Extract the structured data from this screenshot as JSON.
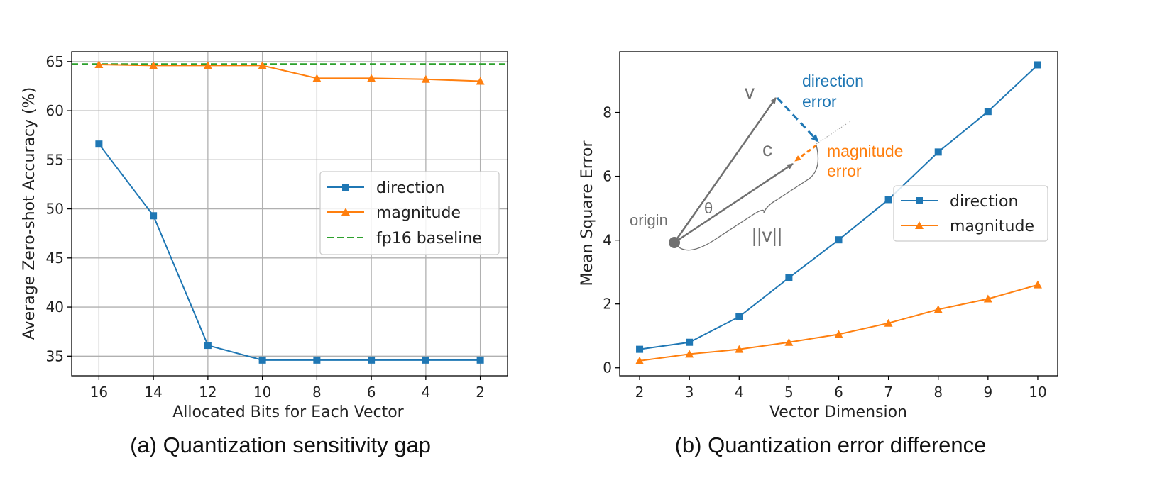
{
  "colors": {
    "direction": "#1f77b4",
    "magnitude": "#ff7f0e",
    "baseline": "#2ca02c",
    "grid": "#b0b0b0",
    "annotation_gray": "#707070"
  },
  "chart_data": [
    {
      "type": "line",
      "caption": "(a) Quantization sensitivity gap",
      "xlabel": "Allocated Bits for Each Vector",
      "ylabel": "Average Zero-shot Accuracy (%)",
      "x": [
        16,
        14,
        12,
        10,
        8,
        6,
        4,
        2
      ],
      "x_tick_labels": [
        "16",
        "14",
        "12",
        "10",
        "8",
        "6",
        "4",
        "2"
      ],
      "y_ticks": [
        35,
        40,
        45,
        50,
        55,
        60,
        65
      ],
      "y_tick_labels": [
        "35",
        "40",
        "45",
        "50",
        "55",
        "60",
        "65"
      ],
      "xlim": [
        17,
        1
      ],
      "ylim": [
        33.0,
        66.0
      ],
      "grid": true,
      "legend_position": "center-right",
      "series": [
        {
          "name": "direction",
          "marker": "square",
          "values": [
            56.6,
            49.3,
            36.1,
            34.6,
            34.6,
            34.6,
            34.6,
            34.6
          ]
        },
        {
          "name": "magnitude",
          "marker": "triangle",
          "values": [
            64.7,
            64.6,
            64.6,
            64.6,
            63.3,
            63.3,
            63.2,
            63.0
          ]
        }
      ],
      "baseline": {
        "name": "fp16 baseline",
        "value": 64.75,
        "style": "dashed"
      }
    },
    {
      "type": "line",
      "caption": "(b) Quantization error difference",
      "xlabel": "Vector Dimension",
      "ylabel": "Mean Square Error",
      "x": [
        2,
        3,
        4,
        5,
        6,
        7,
        8,
        9,
        10
      ],
      "x_tick_labels": [
        "2",
        "3",
        "4",
        "5",
        "6",
        "7",
        "8",
        "9",
        "10"
      ],
      "y_ticks": [
        0,
        2,
        4,
        6,
        8
      ],
      "y_tick_labels": [
        "0",
        "2",
        "4",
        "6",
        "8"
      ],
      "xlim": [
        1.6,
        10.4
      ],
      "ylim": [
        -0.25,
        9.9
      ],
      "grid": false,
      "legend_position": "right",
      "series": [
        {
          "name": "direction",
          "marker": "square",
          "values": [
            0.58,
            0.8,
            1.6,
            2.82,
            4.01,
            5.27,
            6.76,
            8.03,
            9.49
          ]
        },
        {
          "name": "magnitude",
          "marker": "triangle",
          "values": [
            0.22,
            0.43,
            0.58,
            0.8,
            1.05,
            1.4,
            1.83,
            2.16,
            2.6
          ]
        }
      ],
      "annotation": {
        "label_v": "v",
        "label_c": "c",
        "label_theta": "θ",
        "label_origin": "origin",
        "label_norm": "||v||",
        "label_direction_error": [
          "direction",
          "error"
        ],
        "label_magnitude_error": [
          "magnitude",
          "error"
        ]
      }
    }
  ]
}
